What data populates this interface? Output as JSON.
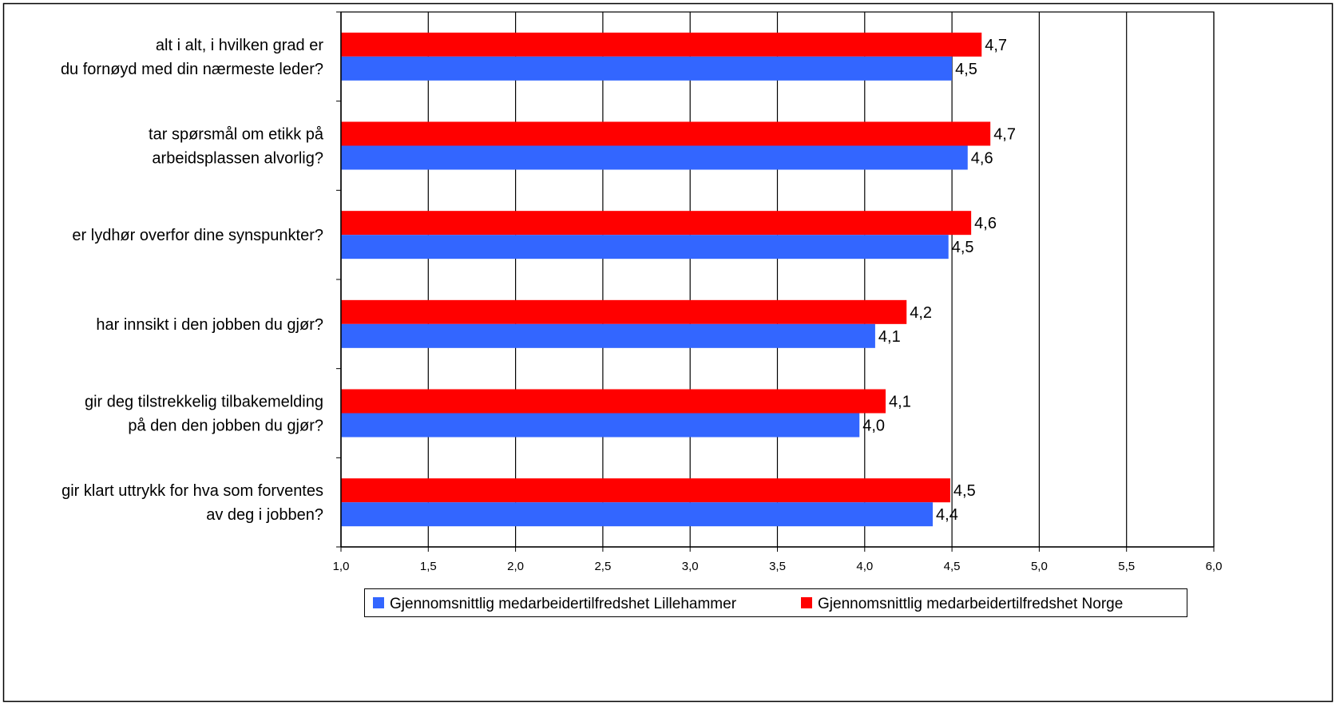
{
  "chart_data": {
    "type": "bar",
    "orientation": "horizontal",
    "categories": [
      [
        "alt i alt, i hvilken grad er",
        "du fornøyd med din nærmeste leder?"
      ],
      [
        "tar spørsmål om etikk på",
        "arbeidsplassen alvorlig?"
      ],
      [
        "er lydhør overfor dine synspunkter?"
      ],
      [
        "har innsikt i den jobben du gjør?"
      ],
      [
        "gir deg tilstrekkelig tilbakemelding",
        "på den den jobben du gjør?"
      ],
      [
        "gir klart uttrykk for hva som forventes",
        "av deg i jobben?"
      ]
    ],
    "series": [
      {
        "name": "Gjennomsnittlig medarbeidertilfredshet Lillehammer",
        "color": "#3366ff",
        "values": [
          4.5,
          4.59,
          4.48,
          4.06,
          3.97,
          4.39
        ],
        "labels": [
          "4,5",
          "4,6",
          "4,5",
          "4,1",
          "4,0",
          "4,4"
        ]
      },
      {
        "name": "Gjennomsnittlig medarbeidertilfredshet Norge",
        "color": "#ff0000",
        "values": [
          4.67,
          4.72,
          4.61,
          4.24,
          4.12,
          4.49
        ],
        "labels": [
          "4,7",
          "4,7",
          "4,6",
          "4,2",
          "4,1",
          "4,5"
        ]
      }
    ],
    "xlim": [
      1.0,
      6.0
    ],
    "xticks": [
      1.0,
      1.5,
      2.0,
      2.5,
      3.0,
      3.5,
      4.0,
      4.5,
      5.0,
      5.5,
      6.0
    ],
    "xtick_labels": [
      "1,0",
      "1,5",
      "2,0",
      "2,5",
      "3,0",
      "3,5",
      "4,0",
      "4,5",
      "5,0",
      "5,5",
      "6,0"
    ],
    "grid": "vertical",
    "legend_position": "bottom",
    "title": "",
    "xlabel": "",
    "ylabel": ""
  }
}
